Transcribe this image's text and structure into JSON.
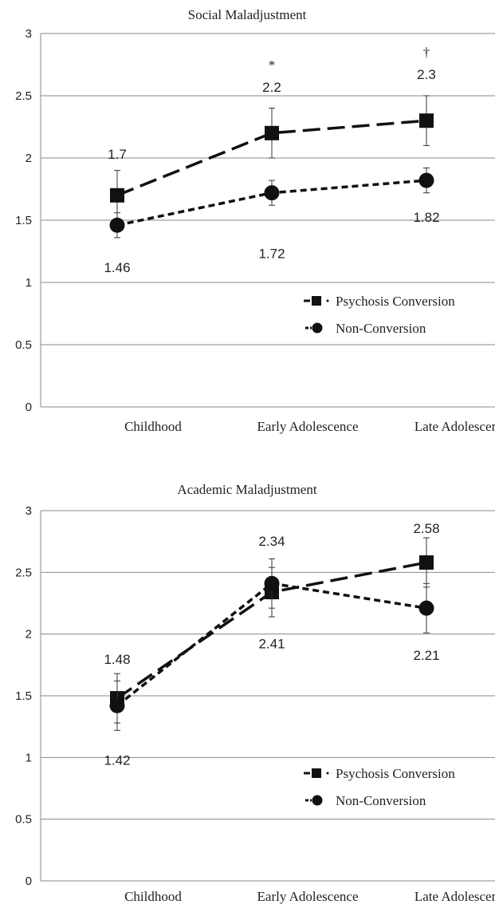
{
  "chart_data": [
    {
      "type": "line",
      "title": "Social Maladjustment",
      "categories": [
        "Childhood",
        "Early Adolescence",
        "Late Adolescence"
      ],
      "ylim": [
        0,
        3
      ],
      "yticks": [
        "0",
        "0.5",
        "1",
        "1.5",
        "2",
        "2.5",
        "3"
      ],
      "grid": true,
      "legend_position": "right",
      "series": [
        {
          "name": "Psychosis Conversion",
          "marker": "square",
          "line_style": "long-dash",
          "values": [
            1.7,
            2.2,
            2.3
          ],
          "error": [
            0.2,
            0.2,
            0.2
          ],
          "labels": [
            "1.7",
            "2.2",
            "2.3"
          ]
        },
        {
          "name": "Non-Conversion",
          "marker": "circle",
          "line_style": "short-dash",
          "values": [
            1.46,
            1.72,
            1.82
          ],
          "error": [
            0.1,
            0.1,
            0.1
          ],
          "labels": [
            "1.46",
            "1.72",
            "1.82"
          ]
        }
      ],
      "annotations": [
        {
          "category": "Early Adolescence",
          "text": "*"
        },
        {
          "category": "Late Adolescence",
          "text": "†"
        }
      ]
    },
    {
      "type": "line",
      "title": "Academic Maladjustment",
      "categories": [
        "Childhood",
        "Early Adolescence",
        "Late Adolescence"
      ],
      "ylim": [
        0,
        3
      ],
      "yticks": [
        "0",
        "0.5",
        "1",
        "1.5",
        "2",
        "2.5",
        "3"
      ],
      "grid": true,
      "legend_position": "right",
      "series": [
        {
          "name": "Psychosis Conversion",
          "marker": "square",
          "line_style": "long-dash",
          "values": [
            1.48,
            2.34,
            2.58
          ],
          "error": [
            0.2,
            0.2,
            0.2
          ],
          "labels": [
            "1.48",
            "2.34",
            "2.58"
          ]
        },
        {
          "name": "Non-Conversion",
          "marker": "circle",
          "line_style": "short-dash",
          "values": [
            1.42,
            2.41,
            2.21
          ],
          "error": [
            0.2,
            0.2,
            0.2
          ],
          "labels": [
            "1.42",
            "2.41",
            "2.21"
          ]
        }
      ],
      "annotations": []
    }
  ]
}
